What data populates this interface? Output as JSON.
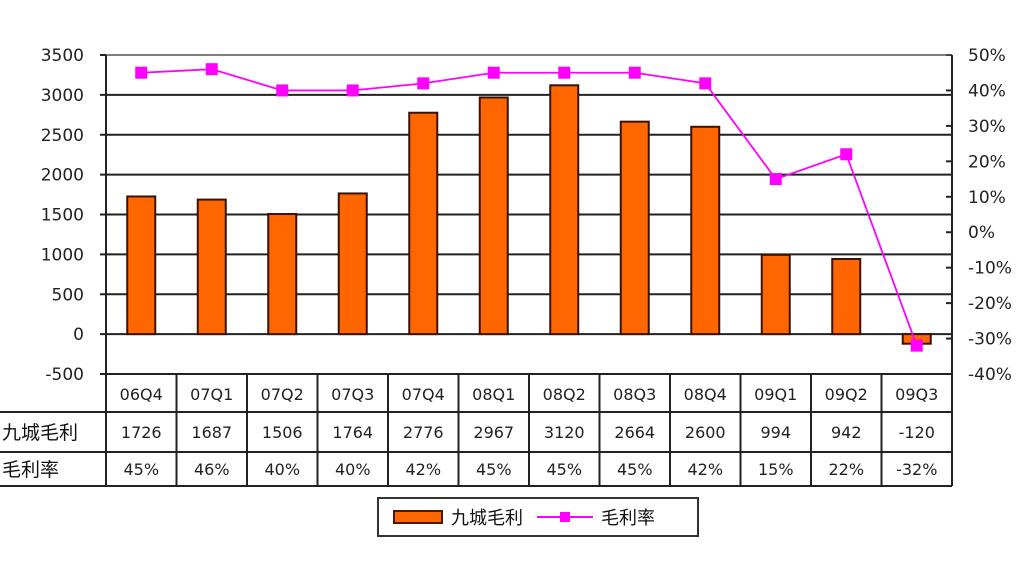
{
  "chart_data": {
    "type": "bar",
    "title": "",
    "categories": [
      "06Q4",
      "07Q1",
      "07Q2",
      "07Q3",
      "07Q4",
      "08Q1",
      "08Q2",
      "08Q3",
      "08Q4",
      "09Q1",
      "09Q2",
      "09Q3"
    ],
    "series": [
      {
        "name": "九城毛利",
        "type": "bar",
        "axis": "left",
        "color": "#FF6600",
        "values": [
          1726,
          1687,
          1506,
          1764,
          2776,
          2967,
          3120,
          2664,
          2600,
          994,
          942,
          -120
        ]
      },
      {
        "name": "毛利率",
        "type": "line",
        "axis": "right",
        "color": "#FF00FF",
        "values": [
          45,
          46,
          40,
          40,
          42,
          45,
          45,
          45,
          42,
          15,
          22,
          -32
        ],
        "unit": "%"
      }
    ],
    "left_axis": {
      "ylim": [
        -500,
        3500
      ],
      "ticks": [
        "3500",
        "3000",
        "2500",
        "2000",
        "1500",
        "1000",
        "500",
        "0",
        "-500"
      ]
    },
    "right_axis": {
      "ylim": [
        -40,
        50
      ],
      "ticks": [
        "50%",
        "40%",
        "30%",
        "20%",
        "10%",
        "0%",
        "-10%",
        "-20%",
        "-30%",
        "-40%"
      ]
    },
    "grid": true,
    "legend_position": "bottom",
    "data_table": {
      "row_labels": [
        "九城毛利",
        "毛利率"
      ],
      "rows": [
        [
          "1726",
          "1687",
          "1506",
          "1764",
          "2776",
          "2967",
          "3120",
          "2664",
          "2600",
          "994",
          "942",
          "-120"
        ],
        [
          "45%",
          "46%",
          "40%",
          "40%",
          "42%",
          "45%",
          "45%",
          "45%",
          "42%",
          "15%",
          "22%",
          "-32%"
        ]
      ]
    }
  },
  "legend": {
    "items": [
      {
        "label": "九城毛利",
        "icon": "bar-swatch"
      },
      {
        "label": "毛利率",
        "icon": "line-marker-swatch"
      }
    ]
  }
}
